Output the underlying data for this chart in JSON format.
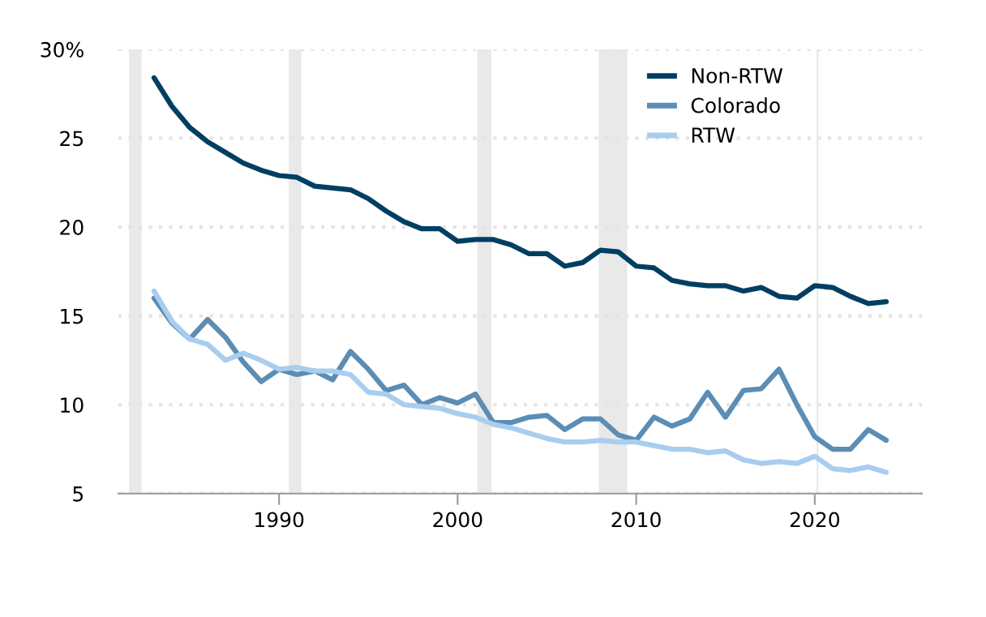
{
  "chart_data": {
    "type": "line",
    "x": [
      1983,
      1984,
      1985,
      1986,
      1987,
      1988,
      1989,
      1990,
      1991,
      1992,
      1993,
      1994,
      1995,
      1996,
      1997,
      1998,
      1999,
      2000,
      2001,
      2002,
      2003,
      2004,
      2005,
      2006,
      2007,
      2008,
      2009,
      2010,
      2011,
      2012,
      2013,
      2014,
      2015,
      2016,
      2017,
      2018,
      2019,
      2020,
      2021,
      2022,
      2023,
      2024
    ],
    "series": [
      {
        "name": "Non-RTW",
        "color": "#003f62",
        "values": [
          28.4,
          26.8,
          25.6,
          24.8,
          24.2,
          23.6,
          23.2,
          22.9,
          22.8,
          22.3,
          22.2,
          22.1,
          21.6,
          20.9,
          20.3,
          19.9,
          19.9,
          19.2,
          19.3,
          19.3,
          19.0,
          18.5,
          18.5,
          17.8,
          18.0,
          18.7,
          18.6,
          17.8,
          17.7,
          17.0,
          16.8,
          16.7,
          16.7,
          16.4,
          16.6,
          16.1,
          16.0,
          16.7,
          16.6,
          16.1,
          15.7,
          15.8
        ]
      },
      {
        "name": "Colorado",
        "color": "#5b8db5",
        "values": [
          16.0,
          14.6,
          13.7,
          14.8,
          13.8,
          12.4,
          11.3,
          12.0,
          11.7,
          11.9,
          11.4,
          13.0,
          12.0,
          10.8,
          11.1,
          10.0,
          10.4,
          10.1,
          10.6,
          9.0,
          9.0,
          9.3,
          9.4,
          8.6,
          9.2,
          9.2,
          8.3,
          8.0,
          9.3,
          8.8,
          9.2,
          10.7,
          9.3,
          10.8,
          10.9,
          12.0,
          10.0,
          8.2,
          7.5,
          7.5,
          8.6,
          8.0
        ]
      },
      {
        "name": "RTW",
        "color": "#a8cdee",
        "values": [
          16.4,
          14.7,
          13.7,
          13.4,
          12.5,
          12.9,
          12.5,
          12.0,
          12.1,
          11.9,
          11.9,
          11.7,
          10.7,
          10.6,
          10.0,
          9.9,
          9.8,
          9.5,
          9.3,
          8.9,
          8.7,
          8.4,
          8.1,
          7.9,
          7.9,
          8.0,
          7.9,
          7.9,
          7.7,
          7.5,
          7.5,
          7.3,
          7.4,
          6.9,
          6.7,
          6.8,
          6.7,
          7.1,
          6.4,
          6.3,
          6.5,
          6.2
        ]
      }
    ],
    "xlim": [
      1981,
      2026
    ],
    "xticks": [
      1990,
      2000,
      2010,
      2020
    ],
    "ylim": [
      5,
      30
    ],
    "yticks": [
      5,
      10,
      15,
      20,
      25,
      {
        "value": 30,
        "label": "30%"
      }
    ],
    "bands": [
      {
        "axis": "x",
        "from": 1981.6,
        "to": 1982.3,
        "color": "#e9e9e9"
      },
      {
        "axis": "x",
        "from": 1990.55,
        "to": 1991.25,
        "color": "#e9e9e9"
      },
      {
        "axis": "x",
        "from": 2001.1,
        "to": 2001.9,
        "color": "#e9e9e9"
      },
      {
        "axis": "x",
        "from": 2007.9,
        "to": 2009.5,
        "color": "#e9e9e9"
      },
      {
        "axis": "x",
        "from": 2020.1,
        "to": 2020.2,
        "color": "#e9e9e9"
      }
    ],
    "grid": "y",
    "legend": "top right",
    "line_style": "solid",
    "marker": "none"
  }
}
